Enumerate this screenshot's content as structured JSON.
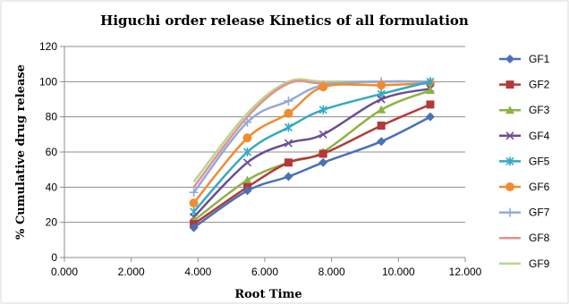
{
  "chart_data": {
    "type": "line",
    "title": "Higuchi order release  Kinetics  of all formulation",
    "xlabel": "Root Time",
    "ylabel": "% Cumulative drug release",
    "xlim": [
      0,
      12
    ],
    "ylim": [
      0,
      120
    ],
    "xticks": [
      "0.000",
      "2.000",
      "4.000",
      "6.000",
      "8.000",
      "10.000",
      "12.000"
    ],
    "yticks": [
      "0",
      "20",
      "40",
      "60",
      "80",
      "100",
      "120"
    ],
    "grid": "horizontal",
    "legend": "right",
    "x": [
      3.873,
      5.477,
      6.708,
      7.746,
      9.487,
      10.954
    ],
    "series": [
      {
        "name": "GF1",
        "color": "#4a70b8",
        "marker": "diamond",
        "values": [
          17,
          38,
          46,
          54,
          66,
          80
        ]
      },
      {
        "name": "GF2",
        "color": "#b3393a",
        "marker": "square",
        "values": [
          19,
          40,
          54,
          59,
          75,
          87
        ]
      },
      {
        "name": "GF3",
        "color": "#8db343",
        "marker": "triangle",
        "values": [
          21,
          44,
          54,
          60,
          84,
          95
        ]
      },
      {
        "name": "GF4",
        "color": "#6b4d94",
        "marker": "x",
        "values": [
          23,
          54,
          65,
          70,
          90,
          96
        ]
      },
      {
        "name": "GF5",
        "color": "#33a9c4",
        "marker": "star",
        "values": [
          26,
          60,
          74,
          84,
          93,
          100
        ]
      },
      {
        "name": "GF6",
        "color": "#f08c30",
        "marker": "circle",
        "values": [
          31,
          68,
          82,
          97,
          98,
          99
        ]
      },
      {
        "name": "GF7",
        "color": "#93a9d9",
        "marker": "plus",
        "values": [
          37,
          77,
          89,
          98,
          100,
          100
        ]
      },
      {
        "name": "GF8",
        "color": "#e09290",
        "marker": "none",
        "values": [
          40,
          80,
          99,
          99,
          100,
          100
        ]
      },
      {
        "name": "GF9",
        "color": "#bad58e",
        "marker": "none",
        "values": [
          43,
          82,
          100,
          100,
          100,
          100
        ]
      }
    ]
  }
}
